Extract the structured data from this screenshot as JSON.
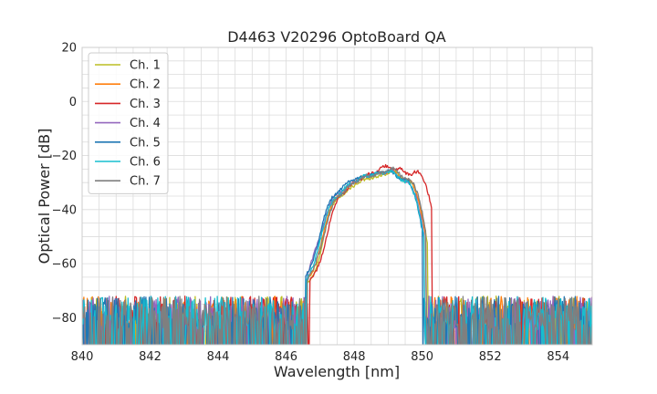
{
  "chart_data": {
    "type": "line",
    "title": "D4463 V20296 OptoBoard QA",
    "xlabel": "Wavelength [nm]",
    "ylabel": "Optical Power [dB]",
    "xlim": [
      840,
      855
    ],
    "ylim": [
      -90,
      20
    ],
    "xticks": [
      840,
      842,
      844,
      846,
      848,
      850,
      852,
      854
    ],
    "yticks": [
      20,
      0,
      -20,
      -40,
      -60,
      -80
    ],
    "grid": true,
    "legend_position": "top-left",
    "noise_floor_db": -80,
    "noise_min_db": -90,
    "noise_max_db": -72,
    "series": [
      {
        "name": "Ch. 1",
        "color": "#bcbd22",
        "peaks": [
          [
            846.7,
            -67
          ],
          [
            847.15,
            -58
          ],
          [
            847.55,
            -36
          ],
          [
            847.95,
            -32
          ],
          [
            848.35,
            -29
          ],
          [
            848.75,
            -28
          ],
          [
            849.15,
            -26
          ],
          [
            849.6,
            -30
          ]
        ],
        "edge_start": 846.62,
        "edge_end": 850.15
      },
      {
        "name": "Ch. 2",
        "color": "#ff7f0e",
        "peaks": [
          [
            846.67,
            -66
          ],
          [
            847.12,
            -57
          ],
          [
            847.52,
            -36
          ],
          [
            847.92,
            -31
          ],
          [
            848.32,
            -28
          ],
          [
            848.72,
            -27
          ],
          [
            849.12,
            -26
          ],
          [
            849.57,
            -29
          ]
        ],
        "edge_start": 846.6,
        "edge_end": 850.1
      },
      {
        "name": "Ch. 3",
        "color": "#d62728",
        "peaks": [
          [
            846.75,
            -66
          ],
          [
            847.2,
            -57
          ],
          [
            847.65,
            -35
          ],
          [
            848.05,
            -30
          ],
          [
            848.45,
            -27
          ],
          [
            848.9,
            -24
          ],
          [
            849.35,
            -25
          ],
          [
            849.85,
            -26
          ]
        ],
        "edge_start": 846.68,
        "edge_end": 850.28
      },
      {
        "name": "Ch. 4",
        "color": "#9467bd",
        "peaks": [
          [
            846.68,
            -66
          ],
          [
            847.1,
            -51
          ],
          [
            847.5,
            -35
          ],
          [
            847.9,
            -31
          ],
          [
            848.3,
            -28
          ],
          [
            848.7,
            -27
          ],
          [
            849.1,
            -26
          ],
          [
            849.55,
            -30
          ]
        ],
        "edge_start": 846.6,
        "edge_end": 850.05
      },
      {
        "name": "Ch. 5",
        "color": "#1f77b4",
        "peaks": [
          [
            846.62,
            -65
          ],
          [
            847.05,
            -55
          ],
          [
            847.45,
            -35
          ],
          [
            847.85,
            -30
          ],
          [
            848.25,
            -28
          ],
          [
            848.65,
            -27
          ],
          [
            849.05,
            -26
          ],
          [
            849.5,
            -29
          ]
        ],
        "edge_start": 846.55,
        "edge_end": 850.0
      },
      {
        "name": "Ch. 6",
        "color": "#17becf",
        "peaks": [
          [
            846.65,
            -66
          ],
          [
            847.08,
            -56
          ],
          [
            847.48,
            -36
          ],
          [
            847.88,
            -31
          ],
          [
            848.28,
            -28
          ],
          [
            848.68,
            -27
          ],
          [
            849.08,
            -26
          ],
          [
            849.53,
            -30
          ]
        ],
        "edge_start": 846.58,
        "edge_end": 850.05
      },
      {
        "name": "Ch. 7",
        "color": "#7f7f7f",
        "peaks": [
          [
            846.7,
            -66
          ],
          [
            847.12,
            -56
          ],
          [
            847.55,
            -36
          ],
          [
            847.95,
            -31
          ],
          [
            848.35,
            -28
          ],
          [
            848.75,
            -27
          ],
          [
            849.15,
            -25
          ],
          [
            849.6,
            -29
          ]
        ],
        "edge_start": 846.62,
        "edge_end": 850.12
      }
    ]
  }
}
